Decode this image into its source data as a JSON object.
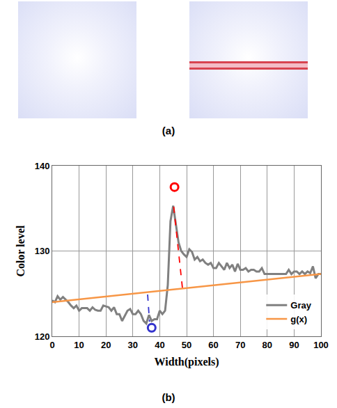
{
  "panel_labels": [
    "(a)",
    "(b)"
  ],
  "chart_data": {
    "type": "line",
    "x_label": "Width(pixels)",
    "y_label": "Color level",
    "xlim": [
      0,
      100
    ],
    "xticks": [
      0,
      10,
      20,
      30,
      40,
      50,
      60,
      70,
      80,
      90,
      100
    ],
    "ylim": [
      120,
      140
    ],
    "yticks": [
      120,
      130,
      140
    ],
    "grid": true,
    "legend": "lower right",
    "series": [
      {
        "name": "Gray",
        "color": "#808080",
        "line_style": "solid",
        "x": [
          0,
          1,
          2,
          3,
          4,
          5,
          6,
          7,
          8,
          9,
          10,
          11,
          12,
          13,
          14,
          15,
          16,
          17,
          18,
          19,
          20,
          21,
          22,
          23,
          24,
          25,
          26,
          27,
          28,
          29,
          30,
          31,
          32,
          33,
          34,
          35,
          36,
          37,
          38,
          39,
          40,
          41,
          42,
          43,
          44,
          45,
          46,
          47,
          48,
          49,
          50,
          51,
          52,
          53,
          54,
          55,
          56,
          57,
          58,
          59,
          60,
          61,
          62,
          63,
          64,
          65,
          66,
          67,
          68,
          69,
          70,
          71,
          72,
          73,
          74,
          75,
          76,
          77,
          78,
          79,
          80,
          81,
          82,
          83,
          84,
          85,
          86,
          87,
          88,
          89,
          90,
          91,
          92,
          93,
          94,
          95,
          96,
          97,
          98,
          99,
          100
        ],
        "values": [
          124.2,
          124.0,
          124.7,
          124.3,
          124.6,
          124.3,
          124.0,
          123.6,
          123.3,
          123.6,
          123.0,
          123.3,
          123.3,
          123.3,
          123.0,
          123.4,
          123.1,
          123.0,
          123.0,
          123.6,
          123.5,
          123.4,
          123.0,
          123.4,
          122.6,
          122.6,
          121.8,
          122.4,
          123.0,
          123.2,
          122.6,
          122.6,
          123.0,
          122.6,
          121.8,
          121.5,
          122.5,
          121.8,
          122.0,
          122.0,
          123.0,
          122.6,
          123.0,
          126.0,
          133.5,
          135.3,
          133.0,
          131.0,
          130.0,
          129.6,
          129.3,
          130.2,
          129.9,
          129.0,
          129.3,
          128.8,
          129.0,
          128.6,
          128.4,
          128.6,
          128.0,
          128.0,
          128.6,
          128.2,
          127.8,
          128.6,
          128.0,
          128.4,
          127.6,
          128.5,
          127.8,
          127.8,
          128.0,
          127.6,
          127.8,
          127.8,
          127.6,
          127.6,
          128.0,
          127.3,
          127.3,
          127.3,
          127.3,
          127.3,
          127.3,
          127.3,
          127.3,
          127.3,
          127.8,
          127.3,
          127.6,
          127.6,
          127.3,
          127.6,
          127.3,
          127.6,
          127.4,
          128.2,
          126.8,
          127.3,
          127.3
        ]
      },
      {
        "name": "g(x)",
        "color": "#f79646",
        "line_style": "solid",
        "x": [
          0,
          100
        ],
        "values": [
          124.0,
          127.3
        ]
      }
    ],
    "points": [
      {
        "x": 45.5,
        "y": 137.5,
        "color": "#ff0000",
        "marker": "circle-open"
      },
      {
        "x": 37,
        "y": 121,
        "color": "#3333cc",
        "marker": "circle-open"
      }
    ],
    "guides": [
      {
        "x": [
          45.2,
          48.5
        ],
        "y": [
          135.2,
          125.5
        ],
        "color": "#ff0000",
        "line_style": "dash"
      },
      {
        "x": [
          35.5,
          36.2
        ],
        "y": [
          124.9,
          121.7
        ],
        "color": "#3333cc",
        "line_style": "dash"
      }
    ]
  }
}
